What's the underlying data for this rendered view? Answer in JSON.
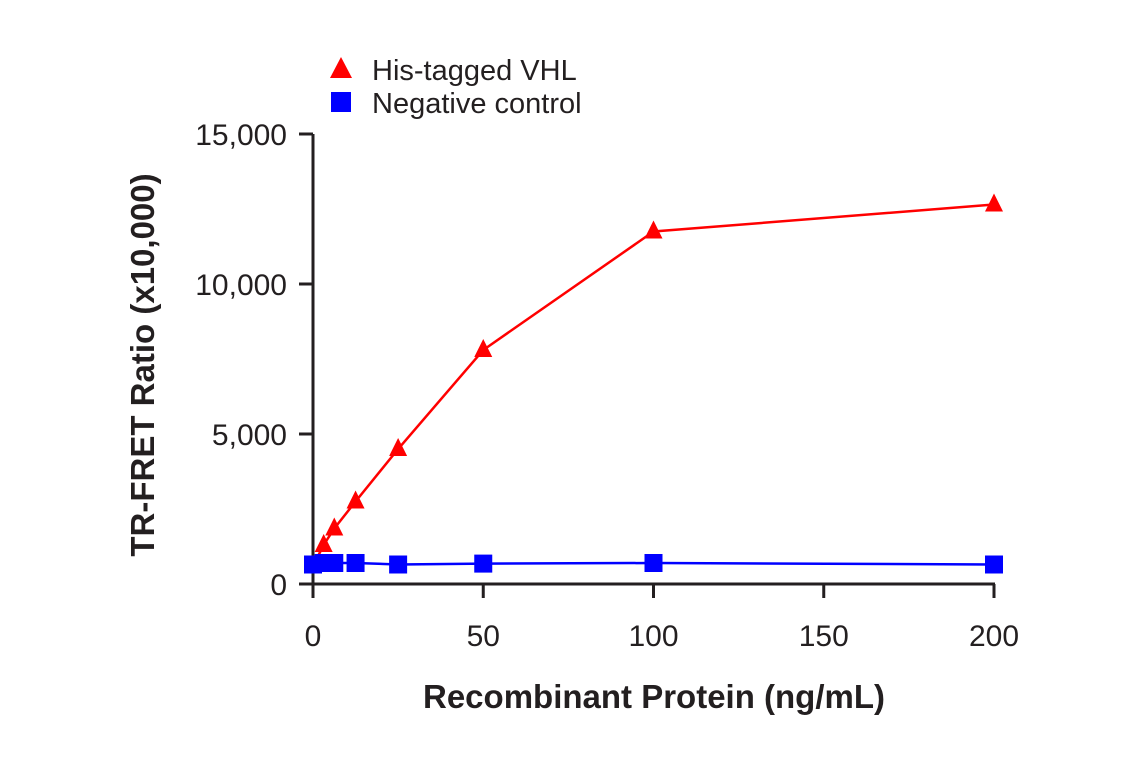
{
  "chart_data": {
    "type": "line",
    "title": "",
    "xlabel": "Recombinant Protein (ng/mL)",
    "ylabel": "TR-FRET Ratio (x10,000)",
    "xlim": [
      0,
      200
    ],
    "ylim": [
      0,
      15000
    ],
    "xticks": [
      0,
      50,
      100,
      150,
      200
    ],
    "xtick_labels": [
      "0",
      "50",
      "100",
      "150",
      "200"
    ],
    "yticks": [
      0,
      5000,
      10000,
      15000
    ],
    "ytick_labels": [
      "0",
      "5,000",
      "10,000",
      "15,000"
    ],
    "grid": false,
    "legend_position": "top-left",
    "series": [
      {
        "name": "His-tagged VHL",
        "color": "#ff0000",
        "marker": "triangle",
        "x": [
          0,
          3.125,
          6.25,
          12.5,
          25,
          50,
          100,
          200
        ],
        "y": [
          600,
          1300,
          1850,
          2750,
          4500,
          7800,
          11750,
          12650
        ]
      },
      {
        "name": "Negative control",
        "color": "#0000ff",
        "marker": "square",
        "x": [
          0,
          3.125,
          6.25,
          12.5,
          25,
          50,
          100,
          200
        ],
        "y": [
          650,
          700,
          700,
          700,
          650,
          680,
          700,
          650
        ]
      }
    ]
  }
}
